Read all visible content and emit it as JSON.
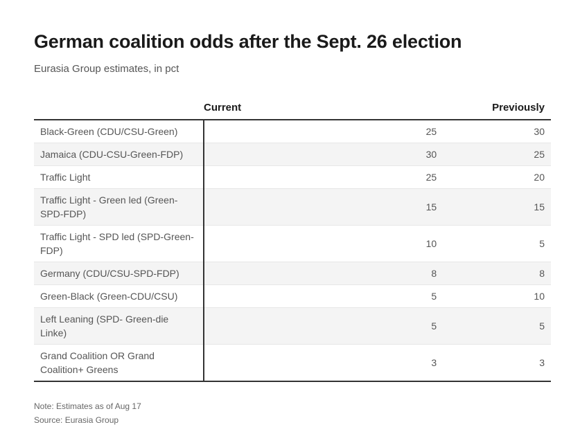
{
  "title": "German coalition odds after the Sept. 26 election",
  "subtitle": "Eurasia Group estimates, in pct",
  "chart_data": {
    "type": "table",
    "columns": [
      "",
      "Current",
      "Previously"
    ],
    "rows": [
      {
        "label": "Black-Green (CDU/CSU-Green)",
        "current": "25",
        "previously": "30"
      },
      {
        "label": "Jamaica (CDU-CSU-Green-FDP)",
        "current": "30",
        "previously": "25"
      },
      {
        "label": "Traffic Light",
        "current": "25",
        "previously": "20"
      },
      {
        "label": "Traffic Light - Green led (Green-SPD-FDP)",
        "current": "15",
        "previously": "15"
      },
      {
        "label": "Traffic Light - SPD led (SPD-Green-FDP)",
        "current": "10",
        "previously": "5"
      },
      {
        "label": "Germany (CDU/CSU-SPD-FDP)",
        "current": "8",
        "previously": "8"
      },
      {
        "label": "Green-Black (Green-CDU/CSU)",
        "current": "5",
        "previously": "10"
      },
      {
        "label": "Left Leaning (SPD- Green-die Linke)",
        "current": "5",
        "previously": "5"
      },
      {
        "label": "Grand Coalition OR Grand Coalition+ Greens",
        "current": "3",
        "previously": "3"
      }
    ]
  },
  "note": "Note: Estimates as of Aug 17",
  "source": "Source: Eurasia Group"
}
